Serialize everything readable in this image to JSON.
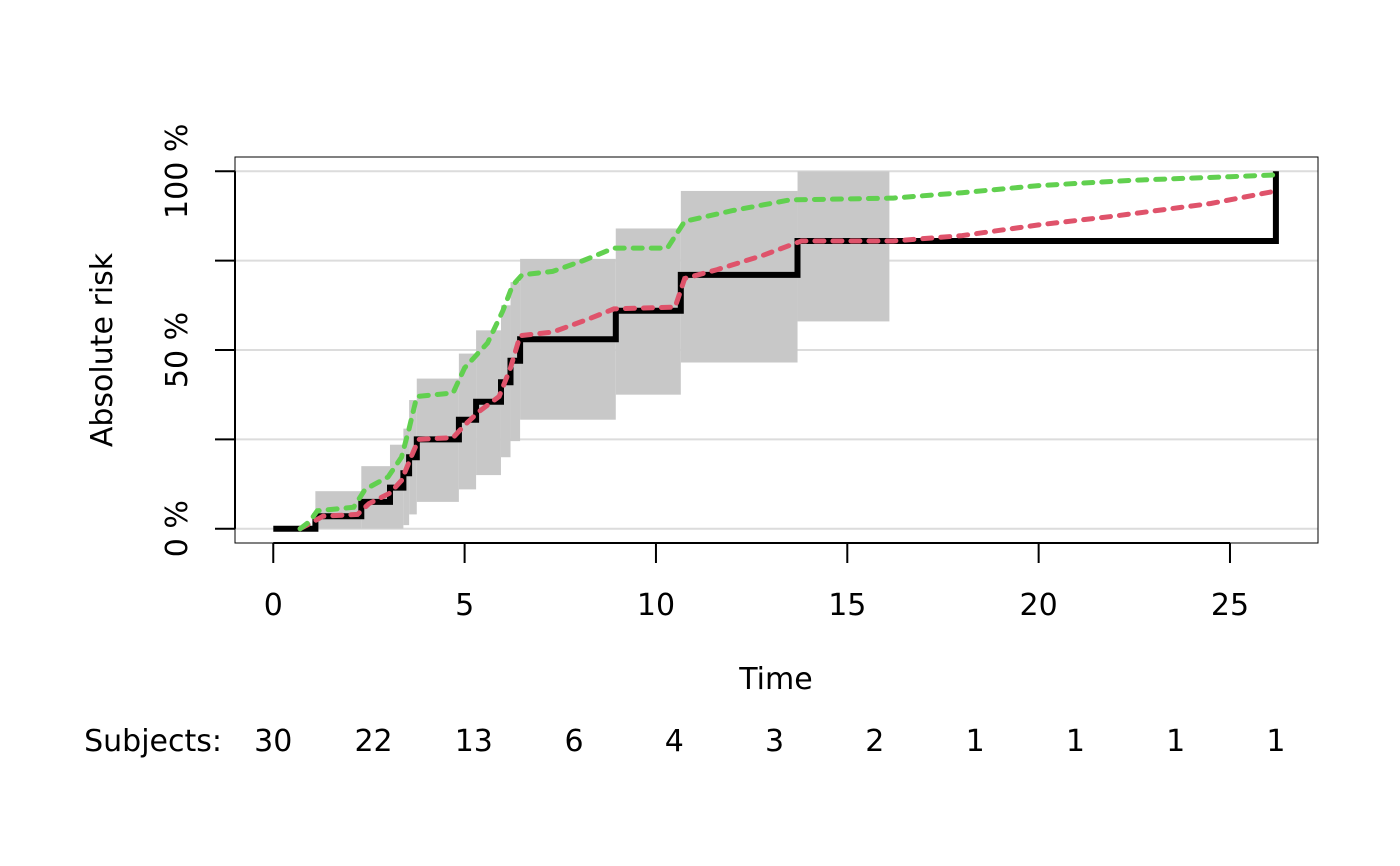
{
  "chart_data": {
    "type": "line",
    "xlabel": "Time",
    "ylabel": "Absolute risk",
    "xlim": [
      -1,
      27.3
    ],
    "ylim": [
      -0.04,
      1.04
    ],
    "x_ticks": [
      0,
      5,
      10,
      15,
      20,
      25
    ],
    "x_tick_labels": [
      "0",
      "5",
      "10",
      "15",
      "20",
      "25"
    ],
    "y_ticks": [
      0,
      0.25,
      0.5,
      0.75,
      1.0
    ],
    "y_tick_labels": [
      "0 %",
      "",
      "50 %",
      "",
      "100 %"
    ],
    "grid_y": true,
    "risk_table": {
      "label": "Subjects:",
      "times": [
        0,
        2.62,
        5.24,
        7.86,
        10.48,
        13.1,
        15.72,
        18.34,
        20.96,
        23.58,
        26.2
      ],
      "counts": [
        "30",
        "22",
        "13",
        "6",
        "4",
        "3",
        "2",
        "1",
        "1",
        "1",
        "1"
      ]
    },
    "series": [
      {
        "kind": "ci_band",
        "color": "#c8c8c8",
        "steps": [
          {
            "t0": 1.1,
            "t1": 2.3,
            "lo": 0.0,
            "hi": 0.105
          },
          {
            "t0": 2.3,
            "t1": 3.05,
            "lo": 0.0,
            "hi": 0.175
          },
          {
            "t0": 3.05,
            "t1": 3.4,
            "lo": 0.0,
            "hi": 0.235
          },
          {
            "t0": 3.4,
            "t1": 3.55,
            "lo": 0.01,
            "hi": 0.28
          },
          {
            "t0": 3.55,
            "t1": 3.75,
            "lo": 0.04,
            "hi": 0.36
          },
          {
            "t0": 3.75,
            "t1": 4.85,
            "lo": 0.075,
            "hi": 0.42
          },
          {
            "t0": 4.85,
            "t1": 5.3,
            "lo": 0.11,
            "hi": 0.49
          },
          {
            "t0": 5.3,
            "t1": 5.95,
            "lo": 0.15,
            "hi": 0.555
          },
          {
            "t0": 5.95,
            "t1": 6.2,
            "lo": 0.2,
            "hi": 0.625
          },
          {
            "t0": 6.2,
            "t1": 6.45,
            "lo": 0.245,
            "hi": 0.69
          },
          {
            "t0": 6.45,
            "t1": 8.95,
            "lo": 0.305,
            "hi": 0.755
          },
          {
            "t0": 8.95,
            "t1": 10.65,
            "lo": 0.375,
            "hi": 0.84
          },
          {
            "t0": 10.65,
            "t1": 13.7,
            "lo": 0.465,
            "hi": 0.945
          },
          {
            "t0": 13.7,
            "t1": 16.1,
            "lo": 0.58,
            "hi": 1.0
          }
        ]
      },
      {
        "kind": "step",
        "color": "#000000",
        "points": [
          [
            0,
            0
          ],
          [
            1.1,
            0.0
          ],
          [
            1.1,
            0.035
          ],
          [
            2.3,
            0.035
          ],
          [
            2.3,
            0.075
          ],
          [
            3.05,
            0.075
          ],
          [
            3.05,
            0.115
          ],
          [
            3.4,
            0.115
          ],
          [
            3.4,
            0.155
          ],
          [
            3.55,
            0.155
          ],
          [
            3.55,
            0.2
          ],
          [
            3.75,
            0.2
          ],
          [
            3.75,
            0.25
          ],
          [
            4.85,
            0.25
          ],
          [
            4.85,
            0.305
          ],
          [
            5.3,
            0.305
          ],
          [
            5.3,
            0.355
          ],
          [
            5.95,
            0.355
          ],
          [
            5.95,
            0.41
          ],
          [
            6.2,
            0.41
          ],
          [
            6.2,
            0.47
          ],
          [
            6.45,
            0.47
          ],
          [
            6.45,
            0.53
          ],
          [
            8.95,
            0.53
          ],
          [
            8.95,
            0.61
          ],
          [
            10.65,
            0.61
          ],
          [
            10.65,
            0.71
          ],
          [
            13.7,
            0.71
          ],
          [
            13.7,
            0.805
          ],
          [
            26.2,
            0.805
          ],
          [
            26.2,
            1.0
          ]
        ]
      },
      {
        "kind": "curve",
        "color": "#df536b",
        "dashed": true,
        "points": [
          [
            0.7,
            0
          ],
          [
            1.05,
            0.02
          ],
          [
            1.3,
            0.035
          ],
          [
            2.2,
            0.04
          ],
          [
            2.5,
            0.07
          ],
          [
            3.05,
            0.1
          ],
          [
            3.35,
            0.135
          ],
          [
            3.6,
            0.2
          ],
          [
            3.8,
            0.25
          ],
          [
            4.7,
            0.255
          ],
          [
            5.0,
            0.29
          ],
          [
            5.4,
            0.33
          ],
          [
            5.9,
            0.37
          ],
          [
            6.2,
            0.45
          ],
          [
            6.45,
            0.54
          ],
          [
            7.3,
            0.55
          ],
          [
            8.2,
            0.585
          ],
          [
            8.9,
            0.615
          ],
          [
            10.5,
            0.62
          ],
          [
            10.75,
            0.7
          ],
          [
            11.6,
            0.725
          ],
          [
            12.8,
            0.765
          ],
          [
            13.8,
            0.805
          ],
          [
            16.2,
            0.805
          ],
          [
            18,
            0.82
          ],
          [
            20,
            0.85
          ],
          [
            22,
            0.875
          ],
          [
            24.5,
            0.91
          ],
          [
            26.2,
            0.945
          ]
        ]
      },
      {
        "kind": "curve",
        "color": "#61d04f",
        "dashed": true,
        "points": [
          [
            0.7,
            0
          ],
          [
            0.95,
            0.02
          ],
          [
            1.15,
            0.05
          ],
          [
            2.1,
            0.06
          ],
          [
            2.4,
            0.11
          ],
          [
            3.0,
            0.145
          ],
          [
            3.35,
            0.2
          ],
          [
            3.55,
            0.28
          ],
          [
            3.75,
            0.37
          ],
          [
            4.7,
            0.38
          ],
          [
            5.0,
            0.45
          ],
          [
            5.6,
            0.52
          ],
          [
            6.0,
            0.61
          ],
          [
            6.25,
            0.68
          ],
          [
            6.5,
            0.71
          ],
          [
            7.3,
            0.72
          ],
          [
            8.1,
            0.75
          ],
          [
            8.9,
            0.785
          ],
          [
            10.3,
            0.785
          ],
          [
            10.75,
            0.86
          ],
          [
            12.0,
            0.89
          ],
          [
            13.5,
            0.92
          ],
          [
            16.2,
            0.925
          ],
          [
            18,
            0.94
          ],
          [
            20,
            0.96
          ],
          [
            22.5,
            0.975
          ],
          [
            25,
            0.985
          ],
          [
            26.2,
            0.99
          ]
        ]
      }
    ]
  }
}
